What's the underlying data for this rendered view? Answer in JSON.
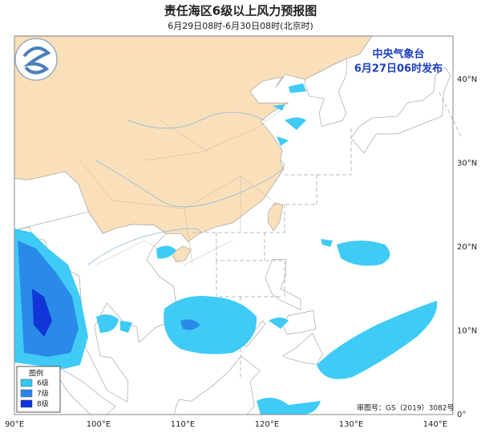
{
  "header": {
    "title": "责任海区6级以上风力预报图",
    "subtitle": "6月29日08时-6月30日08时(北京时)"
  },
  "issuer": {
    "name": "中央气象台",
    "issued": "6月27日06时发布"
  },
  "legend": {
    "title": "图例",
    "items": [
      {
        "label": "6级",
        "color": "#35c8f5"
      },
      {
        "label": "7级",
        "color": "#2a86e8"
      },
      {
        "label": "8级",
        "color": "#1030d8"
      }
    ]
  },
  "approval": "审图号：GS（2019）3082号",
  "axes": {
    "lon_labels": [
      "90°E",
      "100°E",
      "110°E",
      "120°E",
      "130°E",
      "140°E"
    ],
    "lat_labels": [
      "0°",
      "10°N",
      "20°N",
      "30°N",
      "40°N"
    ]
  }
}
